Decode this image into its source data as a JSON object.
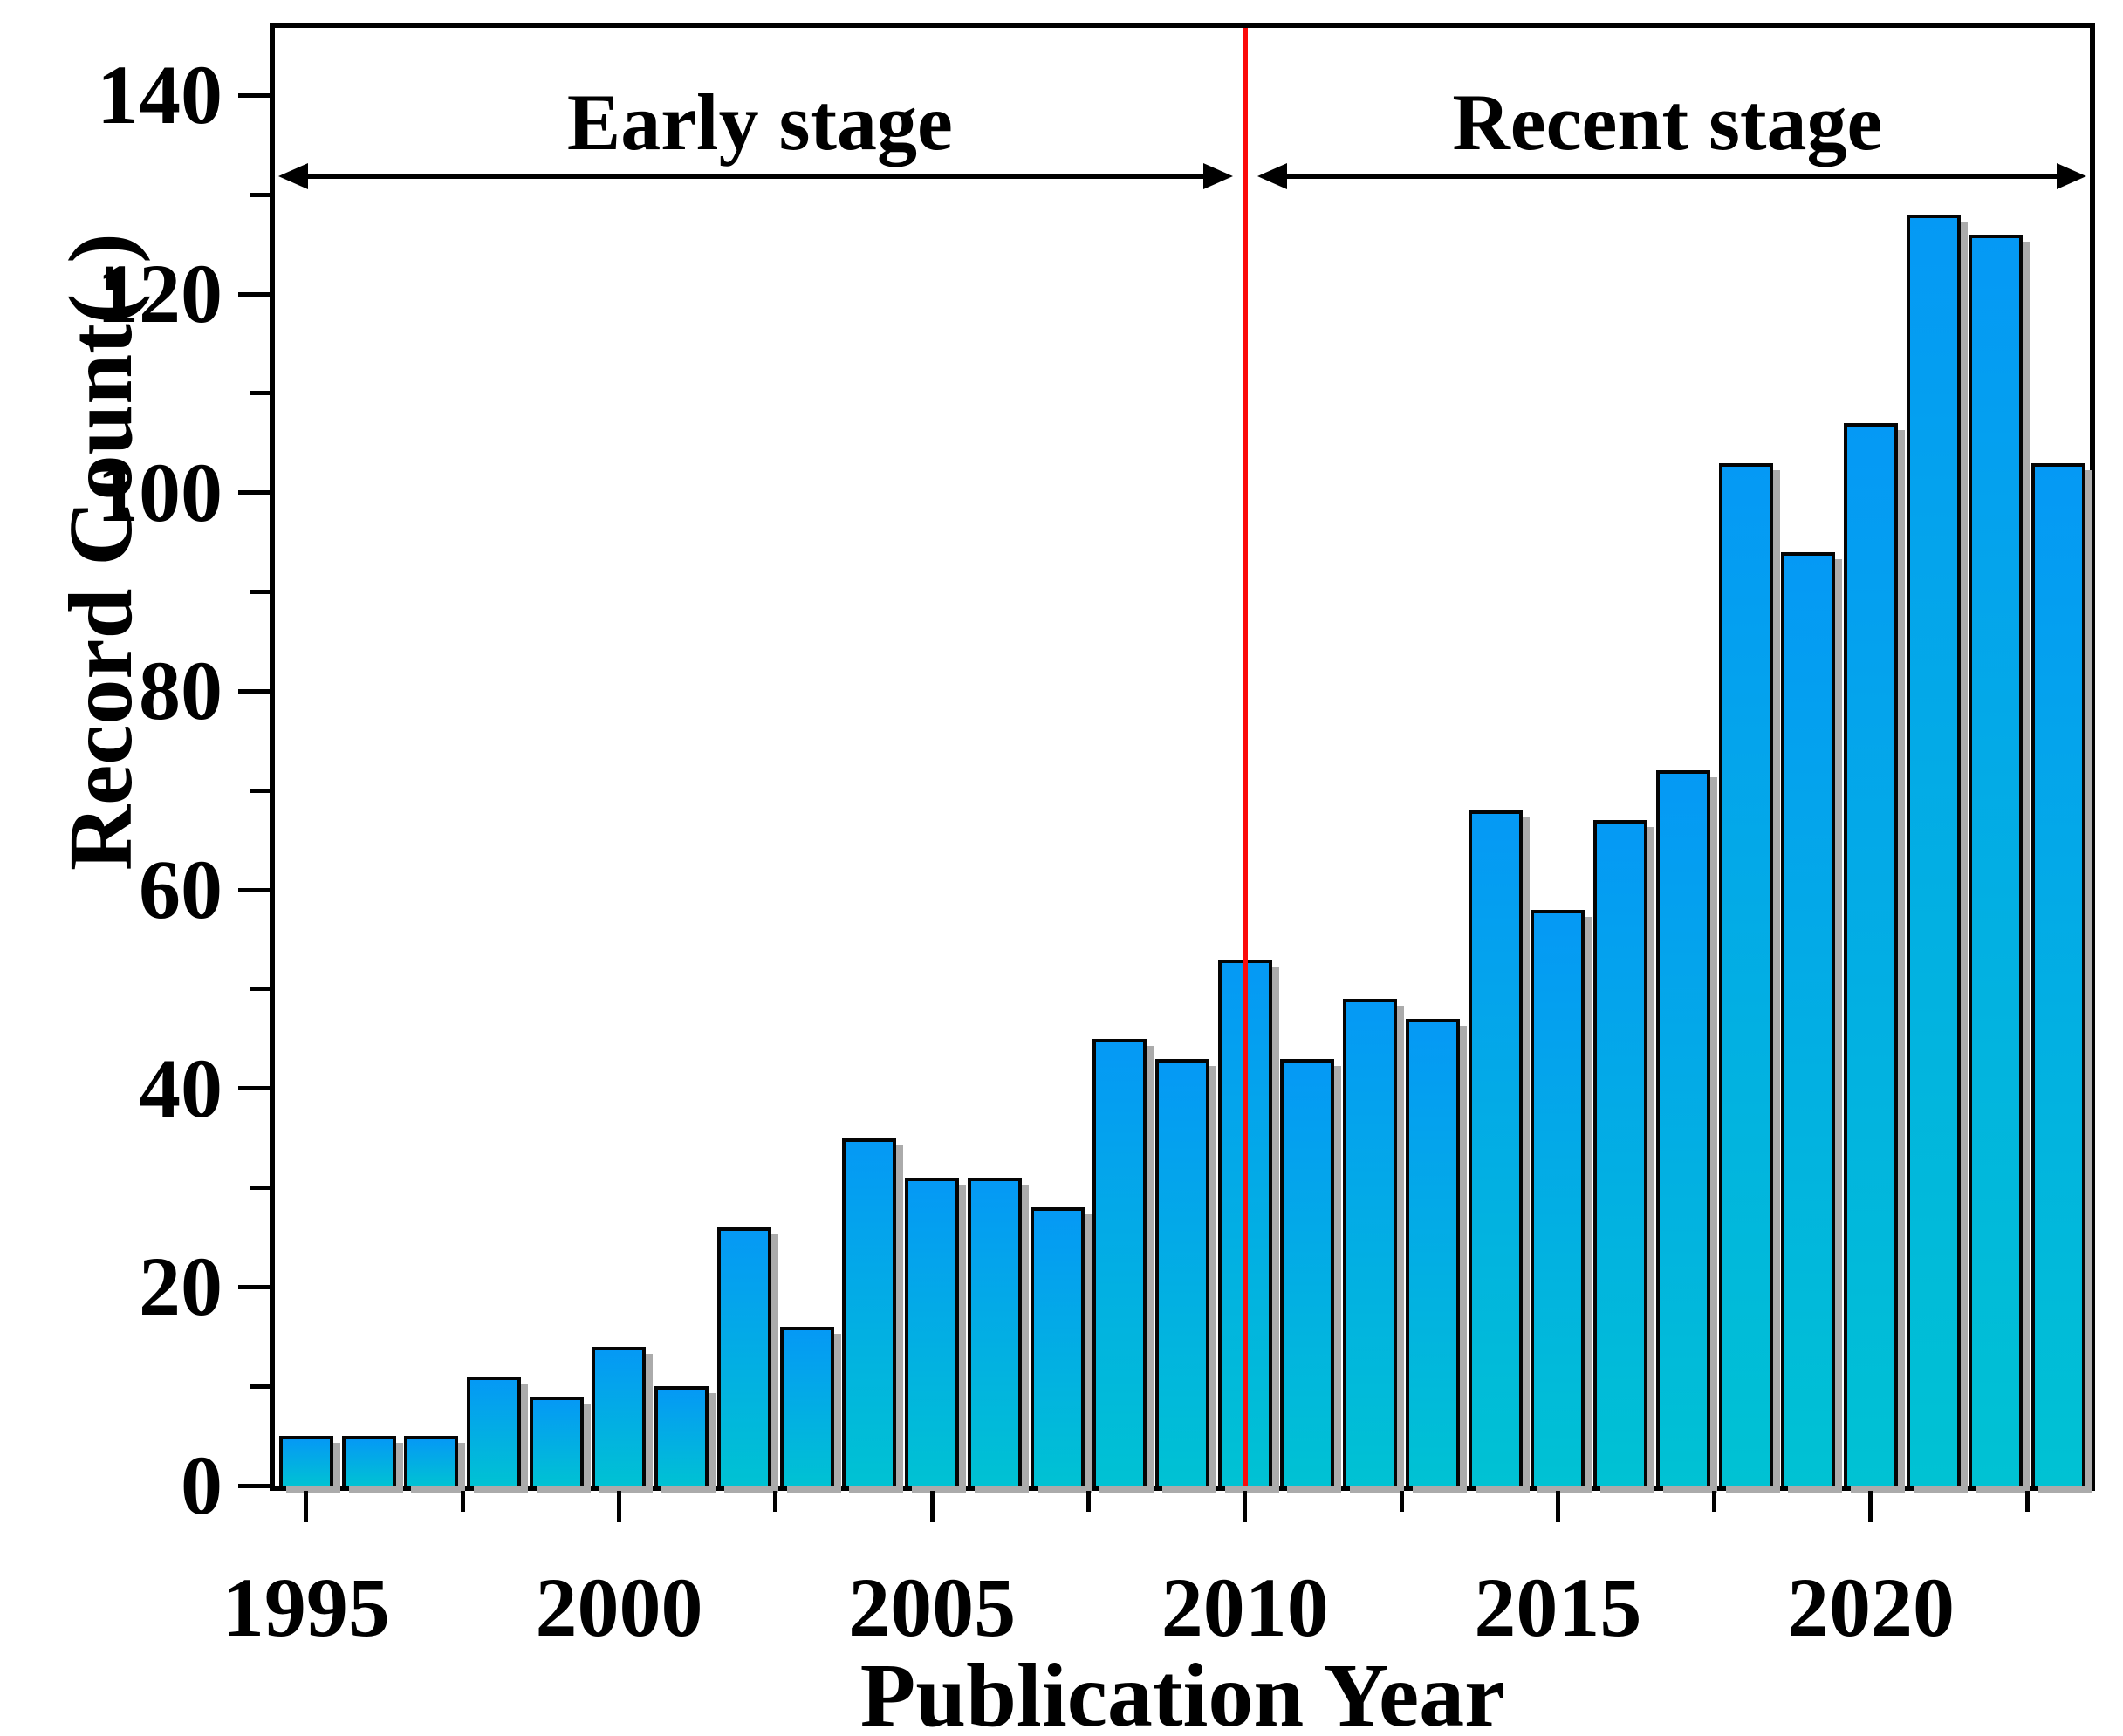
{
  "figure": {
    "background": "#ffffff",
    "frame_color": "#000000"
  },
  "chart_data": {
    "type": "bar",
    "title": "",
    "xlabel": "Publication Year",
    "ylabel": "Record Count(-)",
    "categories": [
      1995,
      1996,
      1997,
      1998,
      1999,
      2000,
      2001,
      2002,
      2003,
      2004,
      2005,
      2006,
      2007,
      2008,
      2009,
      2010,
      2011,
      2012,
      2013,
      2014,
      2015,
      2016,
      2017,
      2018,
      2019,
      2020,
      2021,
      2022,
      2023
    ],
    "values": [
      5,
      5,
      5,
      11,
      9,
      14,
      10,
      26,
      16,
      35,
      31,
      31,
      28,
      45,
      43,
      53,
      43,
      49,
      47,
      68,
      58,
      67,
      72,
      103,
      94,
      107,
      128,
      126,
      103
    ],
    "ylim": [
      0,
      146.8
    ],
    "xlim_years": [
      1994.5,
      2023.5
    ],
    "y_major_ticks": [
      0,
      20,
      40,
      60,
      80,
      100,
      120,
      140
    ],
    "y_major_tick_labels": [
      "0",
      "20",
      "40",
      "60",
      "80",
      "100",
      "120",
      "140"
    ],
    "y_minor_ticks": [
      10,
      30,
      50,
      70,
      90,
      110,
      130
    ],
    "x_major_ticks": [
      1995,
      2000,
      2005,
      2010,
      2015,
      2020
    ],
    "x_major_tick_labels": [
      "1995",
      "2000",
      "2005",
      "2010",
      "2015",
      "2020"
    ],
    "x_minor_ticks": [
      1997.5,
      2002.5,
      2007.5,
      2012.5,
      2017.5,
      2022.5
    ],
    "grid": false,
    "legend": null,
    "bar_style": {
      "gradient_top": "#0599F5",
      "gradient_bottom": "#00C2D3",
      "border_color": "#050505",
      "shadow_color": "#ababab"
    },
    "divider_line": {
      "x_year": 2010,
      "color": "#FB0A0A"
    },
    "annotations": [
      {
        "label": "Early stage",
        "span_years": [
          1994.5,
          2010
        ]
      },
      {
        "label": "Recent stage",
        "span_years": [
          2010,
          2023.5
        ]
      }
    ]
  }
}
